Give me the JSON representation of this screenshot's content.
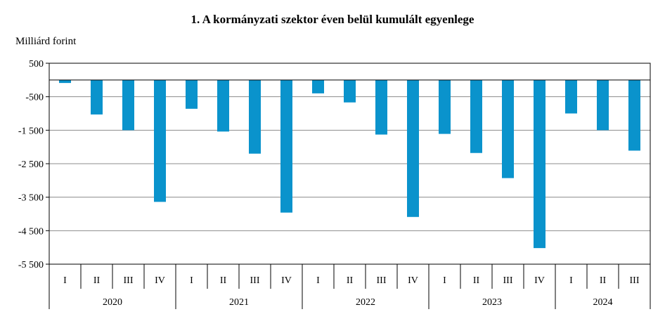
{
  "chart_data": {
    "type": "bar",
    "title": "1. A kormányzati  szektor éven belül kumulált  egyenlege",
    "ylabel": "Milliárd forint",
    "xlabel": "",
    "ylim": [
      -5500,
      500
    ],
    "yticks": [
      500,
      -500,
      -1500,
      -2500,
      -3500,
      -4500,
      -5500
    ],
    "ytick_labels": [
      "500",
      "-500",
      "-1 500",
      "-2 500",
      "-3 500",
      "-4 500",
      "-5 500"
    ],
    "grid": true,
    "bar_color": "#0a93cc",
    "groups": [
      {
        "year": "2020",
        "quarters": [
          "I",
          "II",
          "III",
          "IV"
        ],
        "values": [
          -90,
          -1030,
          -1500,
          -3640
        ]
      },
      {
        "year": "2021",
        "quarters": [
          "I",
          "II",
          "III",
          "IV"
        ],
        "values": [
          -860,
          -1540,
          -2200,
          -3960
        ]
      },
      {
        "year": "2022",
        "quarters": [
          "I",
          "II",
          "III",
          "IV"
        ],
        "values": [
          -400,
          -670,
          -1630,
          -4090
        ]
      },
      {
        "year": "2023",
        "quarters": [
          "I",
          "II",
          "III",
          "IV"
        ],
        "values": [
          -1610,
          -2180,
          -2930,
          -5020
        ]
      },
      {
        "year": "2024",
        "quarters": [
          "I",
          "II",
          "III"
        ],
        "values": [
          -1000,
          -1500,
          -2110
        ]
      }
    ]
  }
}
